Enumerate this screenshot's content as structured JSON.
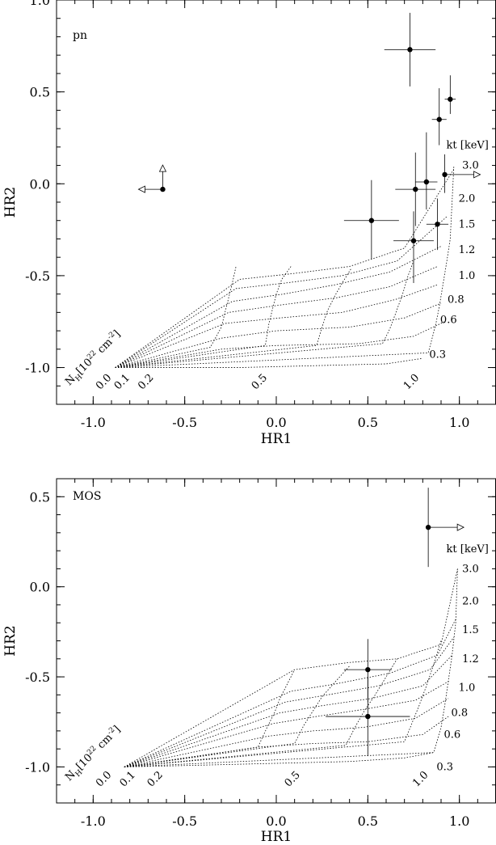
{
  "chart_data": [
    {
      "type": "scatter",
      "panel": "pn",
      "xlabel": "HR1",
      "ylabel": "HR2",
      "xlim": [
        -1.2,
        1.2
      ],
      "ylim": [
        -1.2,
        1.0
      ],
      "xticks": [
        "-1.0",
        "-0.5",
        "0.0",
        "0.5",
        "1.0"
      ],
      "yticks": [
        "1.0",
        "0.5",
        "0.0",
        "-0.5",
        "-1.0"
      ],
      "nh_header": "N",
      "nh_sub": "H",
      "nh_unit": "[10",
      "nh_unit_exp": "22",
      "nh_unit_tail": " cm",
      "nh_unit_tail_exp": "-2",
      "nh_unit_close": "]",
      "kt_header": "kt [keV]",
      "nh_grid": [
        {
          "label": "0.0",
          "hr1": [
            -0.88,
            -0.36,
            -0.3,
            -0.28,
            -0.26,
            -0.24,
            -0.22
          ],
          "hr2": [
            -1.0,
            -0.89,
            -0.78,
            -0.7,
            -0.62,
            -0.54,
            -0.45
          ]
        },
        {
          "label": "0.1",
          "hr1": [
            -0.88,
            -0.06,
            -0.04,
            -0.02,
            0.0,
            0.03,
            0.08
          ],
          "hr2": [
            -1.0,
            -0.88,
            -0.76,
            -0.68,
            -0.6,
            -0.52,
            -0.45
          ]
        },
        {
          "label": "0.2",
          "hr1": [
            -0.88,
            0.22,
            0.25,
            0.28,
            0.32,
            0.36,
            0.41
          ],
          "hr2": [
            -1.0,
            -0.88,
            -0.78,
            -0.69,
            -0.61,
            -0.54,
            -0.46
          ]
        },
        {
          "label": "0.5",
          "hr1": [
            -0.88,
            0.58,
            0.62,
            0.65,
            0.69,
            0.72,
            0.75
          ],
          "hr2": [
            -1.0,
            -0.87,
            -0.79,
            -0.71,
            -0.6,
            -0.5,
            -0.42
          ]
        },
        {
          "label": "1.0",
          "hr1": [
            -0.88,
            0.83,
            0.87,
            0.89,
            0.91,
            0.93,
            0.95,
            0.97
          ],
          "hr2": [
            -1.0,
            -0.92,
            -0.77,
            -0.67,
            -0.55,
            -0.43,
            -0.3,
            0.1
          ]
        }
      ],
      "kt_grid": [
        {
          "label": "0.3",
          "hr1": [
            -0.88,
            -0.6,
            -0.2,
            0.2,
            0.6,
            0.8
          ],
          "hr2": [
            -1.0,
            -1.0,
            -1.0,
            -0.99,
            -0.98,
            -0.95
          ]
        },
        {
          "label": "0.6",
          "hr1": [
            -0.88,
            -0.3,
            0.0,
            0.45,
            0.75,
            0.92
          ],
          "hr2": [
            -1.0,
            -0.9,
            -0.88,
            -0.87,
            -0.83,
            -0.75
          ]
        },
        {
          "label": "0.8",
          "hr1": [
            -0.88,
            -0.3,
            0.0,
            0.4,
            0.7,
            0.9
          ],
          "hr2": [
            -1.0,
            -0.84,
            -0.8,
            -0.78,
            -0.73,
            -0.65
          ]
        },
        {
          "label": "1.0",
          "hr1": [
            -0.88,
            -0.28,
            0.02,
            0.36,
            0.65,
            0.88
          ],
          "hr2": [
            -1.0,
            -0.76,
            -0.73,
            -0.7,
            -0.63,
            -0.55
          ]
        },
        {
          "label": "1.2",
          "hr1": [
            -0.88,
            -0.26,
            0.02,
            0.33,
            0.62,
            0.88
          ],
          "hr2": [
            -1.0,
            -0.7,
            -0.66,
            -0.62,
            -0.56,
            -0.45
          ]
        },
        {
          "label": "1.5",
          "hr1": [
            -0.88,
            -0.24,
            0.04,
            0.32,
            0.62,
            0.9
          ],
          "hr2": [
            -1.0,
            -0.64,
            -0.6,
            -0.55,
            -0.48,
            -0.34
          ]
        },
        {
          "label": "2.0",
          "hr1": [
            -0.88,
            -0.22,
            0.05,
            0.36,
            0.66,
            0.93
          ],
          "hr2": [
            -1.0,
            -0.57,
            -0.54,
            -0.5,
            -0.42,
            -0.18
          ]
        },
        {
          "label": "3.0",
          "hr1": [
            -0.88,
            -0.2,
            0.08,
            0.4,
            0.7,
            0.97
          ],
          "hr2": [
            -1.0,
            -0.52,
            -0.49,
            -0.45,
            -0.35,
            0.08
          ]
        }
      ],
      "points": [
        {
          "hr1": 0.73,
          "hr2": 0.73,
          "xerr": 0.14,
          "yerr_lo": 0.2,
          "yerr_hi": 0.2
        },
        {
          "hr1": 0.95,
          "hr2": 0.46,
          "xerr": 0.03,
          "yerr_lo": 0.08,
          "yerr_hi": 0.13
        },
        {
          "hr1": 0.89,
          "hr2": 0.35,
          "xerr": 0.04,
          "yerr_lo": 0.14,
          "yerr_hi": 0.17
        },
        {
          "hr1": 0.92,
          "hr2": 0.05,
          "xerr": 0.0,
          "yerr_lo": 0.1,
          "yerr_hi": 0.11,
          "arrow": "right"
        },
        {
          "hr1": 0.82,
          "hr2": 0.01,
          "xerr": 0.06,
          "yerr_lo": 0.15,
          "yerr_hi": 0.27
        },
        {
          "hr1": 0.76,
          "hr2": -0.03,
          "xerr": 0.11,
          "yerr_lo": 0.2,
          "yerr_hi": 0.2
        },
        {
          "hr1": 0.52,
          "hr2": -0.2,
          "xerr": 0.15,
          "yerr_lo": 0.21,
          "yerr_hi": 0.22
        },
        {
          "hr1": 0.88,
          "hr2": -0.22,
          "xerr": 0.06,
          "yerr_lo": 0.14,
          "yerr_hi": 0.14
        },
        {
          "hr1": 0.75,
          "hr2": -0.31,
          "xerr": 0.11,
          "yerr_lo": 0.23,
          "yerr_hi": 0.16
        },
        {
          "hr1": -0.62,
          "hr2": -0.03,
          "xerr": 0.0,
          "yerr_lo": 0.0,
          "yerr_hi": 0.0,
          "arrow": "left-up"
        }
      ]
    },
    {
      "type": "scatter",
      "panel": "MOS",
      "xlabel": "HR1",
      "ylabel": "HR2",
      "xlim": [
        -1.2,
        1.2
      ],
      "ylim": [
        -1.2,
        0.6
      ],
      "xticks": [
        "-1.0",
        "-0.5",
        "0.0",
        "0.5",
        "1.0"
      ],
      "yticks": [
        "0.5",
        "0.0",
        "-0.5",
        "-1.0"
      ],
      "nh_header": "N",
      "nh_sub": "H",
      "nh_unit": "[10",
      "nh_unit_exp": "22",
      "nh_unit_tail": " cm",
      "nh_unit_tail_exp": "-2",
      "nh_unit_close": "]",
      "kt_header": "kt [keV]",
      "nh_grid": [
        {
          "label": "0.0",
          "hr1": [
            -0.83,
            -0.1,
            -0.05,
            -0.01,
            0.02,
            0.06,
            0.1
          ],
          "hr2": [
            -1.0,
            -0.89,
            -0.78,
            -0.7,
            -0.62,
            -0.54,
            -0.46
          ]
        },
        {
          "label": "0.1",
          "hr1": [
            -0.83,
            0.1,
            0.15,
            0.2,
            0.25,
            0.32,
            0.4
          ],
          "hr2": [
            -1.0,
            -0.87,
            -0.77,
            -0.69,
            -0.61,
            -0.53,
            -0.44
          ]
        },
        {
          "label": "0.2",
          "hr1": [
            -0.83,
            0.38,
            0.43,
            0.48,
            0.54,
            0.6,
            0.66
          ],
          "hr2": [
            -1.0,
            -0.88,
            -0.78,
            -0.69,
            -0.6,
            -0.5,
            -0.4
          ]
        },
        {
          "label": "0.5",
          "hr1": [
            -0.83,
            0.7,
            0.74,
            0.78,
            0.82,
            0.86,
            0.9
          ],
          "hr2": [
            -1.0,
            -0.86,
            -0.76,
            -0.66,
            -0.55,
            -0.43,
            -0.3
          ]
        },
        {
          "label": "1.0",
          "hr1": [
            -0.83,
            0.86,
            0.9,
            0.92,
            0.94,
            0.96,
            0.98,
            0.99
          ],
          "hr2": [
            -1.0,
            -0.92,
            -0.78,
            -0.66,
            -0.52,
            -0.38,
            -0.2,
            0.1
          ]
        }
      ],
      "kt_grid": [
        {
          "label": "0.3",
          "hr1": [
            -0.83,
            -0.4,
            0.0,
            0.4,
            0.7,
            0.86
          ],
          "hr2": [
            -1.0,
            -0.99,
            -0.98,
            -0.97,
            -0.95,
            -0.92
          ]
        },
        {
          "label": "0.6",
          "hr1": [
            -0.83,
            -0.1,
            0.2,
            0.5,
            0.8,
            0.94
          ],
          "hr2": [
            -1.0,
            -0.89,
            -0.87,
            -0.86,
            -0.82,
            -0.72
          ]
        },
        {
          "label": "0.8",
          "hr1": [
            -0.83,
            -0.05,
            0.2,
            0.48,
            0.76,
            0.94
          ],
          "hr2": [
            -1.0,
            -0.83,
            -0.8,
            -0.78,
            -0.73,
            -0.62
          ]
        },
        {
          "label": "1.0",
          "hr1": [
            -0.83,
            -0.02,
            0.22,
            0.48,
            0.76,
            0.95
          ],
          "hr2": [
            -1.0,
            -0.76,
            -0.72,
            -0.68,
            -0.63,
            -0.52
          ]
        },
        {
          "label": "1.2",
          "hr1": [
            -0.83,
            0.02,
            0.25,
            0.52,
            0.8,
            0.96
          ],
          "hr2": [
            -1.0,
            -0.7,
            -0.66,
            -0.62,
            -0.55,
            -0.38
          ]
        },
        {
          "label": "1.5",
          "hr1": [
            -0.83,
            0.05,
            0.28,
            0.56,
            0.84,
            0.97
          ],
          "hr2": [
            -1.0,
            -0.64,
            -0.6,
            -0.55,
            -0.46,
            -0.28
          ]
        },
        {
          "label": "2.0",
          "hr1": [
            -0.83,
            0.08,
            0.32,
            0.62,
            0.88,
            0.98
          ],
          "hr2": [
            -1.0,
            -0.58,
            -0.54,
            -0.48,
            -0.38,
            -0.18
          ]
        },
        {
          "label": "3.0",
          "hr1": [
            -0.83,
            0.1,
            0.4,
            0.66,
            0.9,
            0.99
          ],
          "hr2": [
            -1.0,
            -0.46,
            -0.42,
            -0.4,
            -0.32,
            0.1
          ]
        }
      ],
      "points": [
        {
          "hr1": 0.83,
          "hr2": 0.33,
          "xerr": 0.0,
          "yerr_lo": 0.22,
          "yerr_hi": 0.22,
          "arrow": "right"
        },
        {
          "hr1": 0.5,
          "hr2": -0.46,
          "xerr": 0.13,
          "yerr_lo": 0.18,
          "yerr_hi": 0.17
        },
        {
          "hr1": 0.5,
          "hr2": -0.72,
          "xerr": 0.23,
          "yerr_lo": 0.22,
          "yerr_hi": 0.22
        }
      ]
    }
  ]
}
